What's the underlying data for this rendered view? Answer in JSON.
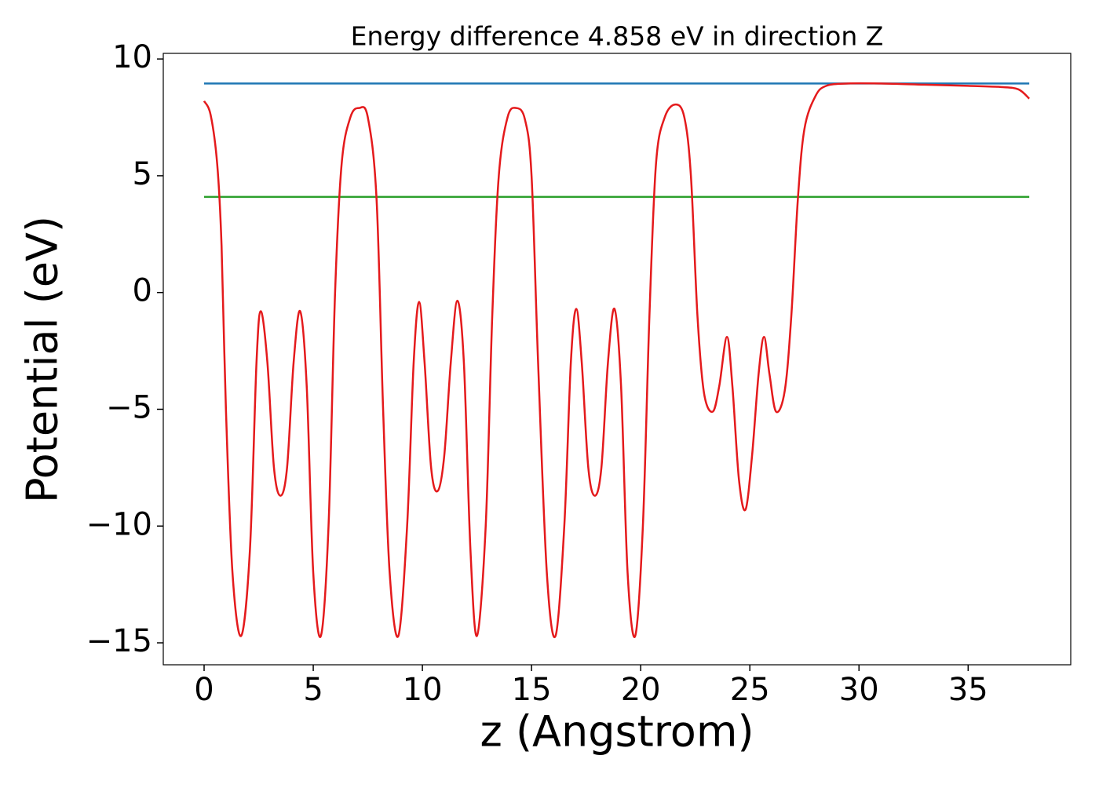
{
  "chart_data": {
    "type": "line",
    "title": "Energy difference 4.858 eV in direction Z",
    "x_label": "z (Angstrom)",
    "y_label": "Potential (eV)",
    "xlim": [
      -1.87,
      39.7
    ],
    "ylim": [
      -15.94,
      10.24
    ],
    "xticks": [
      0,
      5,
      10,
      15,
      20,
      25,
      30,
      35
    ],
    "yticks": [
      {
        "value": -15,
        "label": "−15"
      },
      {
        "value": -10,
        "label": "−10"
      },
      {
        "value": -5,
        "label": "−5"
      },
      0,
      5,
      10
    ],
    "series": [
      {
        "color": "#1f77b4",
        "x": [
          0,
          37.8
        ],
        "values": [
          8.95,
          8.95
        ]
      },
      {
        "color": "#2ca02c",
        "x": [
          0,
          37.8
        ],
        "values": [
          4.092,
          4.092
        ]
      },
      {
        "color": "#e41a1c",
        "x": [
          0,
          0.3,
          0.6,
          0.8,
          1.0,
          1.3,
          1.7,
          2.1,
          2.4,
          2.6,
          2.9,
          3.2,
          3.5,
          3.8,
          4.1,
          4.4,
          4.7,
          5.0,
          5.35,
          5.7,
          6.0,
          6.3,
          6.7,
          7.1,
          7.5,
          7.9,
          8.2,
          8.5,
          8.9,
          9.3,
          9.6,
          9.85,
          10.1,
          10.4,
          10.7,
          11.0,
          11.3,
          11.6,
          11.9,
          12.2,
          12.5,
          12.9,
          13.2,
          13.5,
          13.9,
          14.3,
          14.7,
          15.0,
          15.3,
          15.7,
          16.1,
          16.5,
          16.8,
          17.05,
          17.3,
          17.6,
          17.9,
          18.2,
          18.5,
          18.8,
          19.1,
          19.4,
          19.75,
          20.1,
          20.4,
          20.7,
          21.1,
          21.6,
          22.0,
          22.3,
          22.6,
          22.9,
          23.3,
          23.6,
          23.95,
          24.2,
          24.5,
          24.8,
          25.1,
          25.4,
          25.65,
          25.9,
          26.2,
          26.6,
          26.9,
          27.2,
          27.5,
          28.0,
          28.5,
          29.5,
          31,
          33,
          35,
          36.5,
          37.3,
          37.8
        ],
        "values": [
          8.2,
          7.6,
          5.5,
          2,
          -5,
          -12,
          -14.7,
          -11,
          -3,
          -0.8,
          -3,
          -7.5,
          -8.7,
          -7.5,
          -3,
          -0.8,
          -4,
          -12,
          -14.7,
          -10,
          0,
          5.5,
          7.5,
          7.9,
          7.5,
          4,
          -5,
          -12,
          -14.7,
          -10,
          -3,
          -0.4,
          -3,
          -7.5,
          -8.5,
          -7,
          -3,
          -0.35,
          -3,
          -11,
          -14.7,
          -10,
          -1,
          5,
          7.5,
          7.9,
          7.4,
          5,
          -3,
          -12,
          -14.7,
          -10,
          -3,
          -0.7,
          -3,
          -7.5,
          -8.7,
          -7.5,
          -3,
          -0.7,
          -4,
          -12,
          -14.7,
          -10,
          -1,
          5.5,
          7.5,
          8.05,
          7.5,
          5,
          -1,
          -4.3,
          -5.1,
          -4,
          -1.9,
          -4,
          -8,
          -9.3,
          -7,
          -3.5,
          -1.9,
          -3.5,
          -5.1,
          -4.2,
          -1,
          4,
          7,
          8.4,
          8.85,
          8.95,
          8.95,
          8.9,
          8.85,
          8.8,
          8.7,
          8.3
        ]
      }
    ]
  }
}
